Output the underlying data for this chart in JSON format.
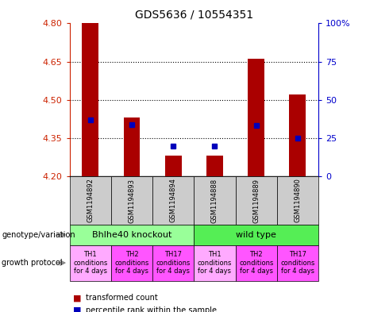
{
  "title": "GDS5636 / 10554351",
  "samples": [
    "GSM1194892",
    "GSM1194893",
    "GSM1194894",
    "GSM1194888",
    "GSM1194889",
    "GSM1194890"
  ],
  "red_values": [
    4.8,
    4.43,
    4.28,
    4.28,
    4.66,
    4.52
  ],
  "blue_pcts": [
    37,
    34,
    20,
    20,
    33,
    25
  ],
  "ylim_left": [
    4.2,
    4.8
  ],
  "ylim_right": [
    0,
    100
  ],
  "yticks_left": [
    4.2,
    4.35,
    4.5,
    4.65,
    4.8
  ],
  "yticks_right": [
    0,
    25,
    50,
    75,
    100
  ],
  "genotype_labels": [
    "Bhlhe40 knockout",
    "wild type"
  ],
  "genotype_colors": [
    "#99ff99",
    "#55ee55"
  ],
  "proto_labels": [
    "TH1\nconditions\nfor 4 days",
    "TH2\nconditions\nfor 4 days",
    "TH17\nconditions\nfor 4 days",
    "TH1\nconditions\nfor 4 days",
    "TH2\nconditions\nfor 4 days",
    "TH17\nconditions\nfor 4 days"
  ],
  "proto_colors": [
    "#ffaaff",
    "#ff55ff",
    "#ff55ff",
    "#ffaaff",
    "#ff55ff",
    "#ff55ff"
  ],
  "bar_bottom": 4.2,
  "red_color": "#aa0000",
  "blue_color": "#0000bb",
  "bg_color": "#ffffff",
  "left_tick_color": "#cc2200",
  "right_tick_color": "#0000cc",
  "sample_box_color": "#cccccc",
  "title_fontsize": 10,
  "tick_fontsize": 8,
  "sample_fontsize": 6,
  "geno_fontsize": 8,
  "proto_fontsize": 6,
  "label_fontsize": 7,
  "legend_fontsize": 7
}
